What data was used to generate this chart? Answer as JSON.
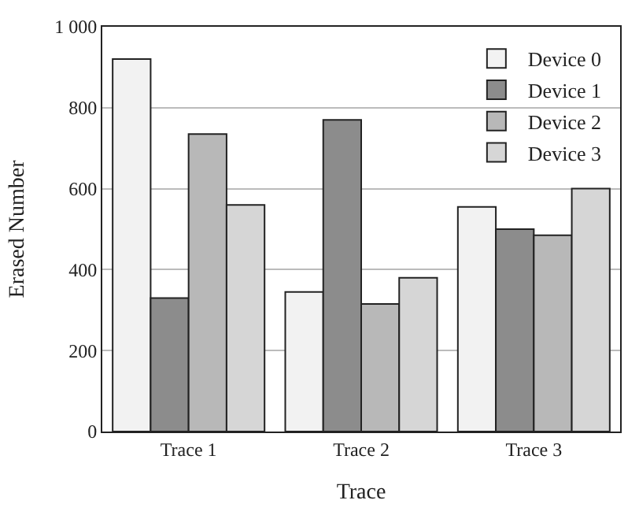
{
  "chart_data": {
    "type": "bar",
    "xlabel": "Trace",
    "ylabel": "Erased Number",
    "categories": [
      "Trace 1",
      "Trace 2",
      "Trace 3"
    ],
    "series": [
      {
        "name": "Device 0",
        "color": "#f2f2f2",
        "values": [
          920,
          345,
          555
        ]
      },
      {
        "name": "Device 1",
        "color": "#8c8c8c",
        "values": [
          330,
          770,
          500
        ]
      },
      {
        "name": "Device 2",
        "color": "#b8b8b8",
        "values": [
          735,
          315,
          485
        ]
      },
      {
        "name": "Device 3",
        "color": "#d6d6d6",
        "values": [
          560,
          380,
          600
        ]
      }
    ],
    "ylim": [
      0,
      1000
    ],
    "yticks": [
      0,
      200,
      400,
      600,
      800,
      {
        "value": 1000,
        "label": "1 000"
      }
    ],
    "grid": "y",
    "legend": "top right"
  }
}
